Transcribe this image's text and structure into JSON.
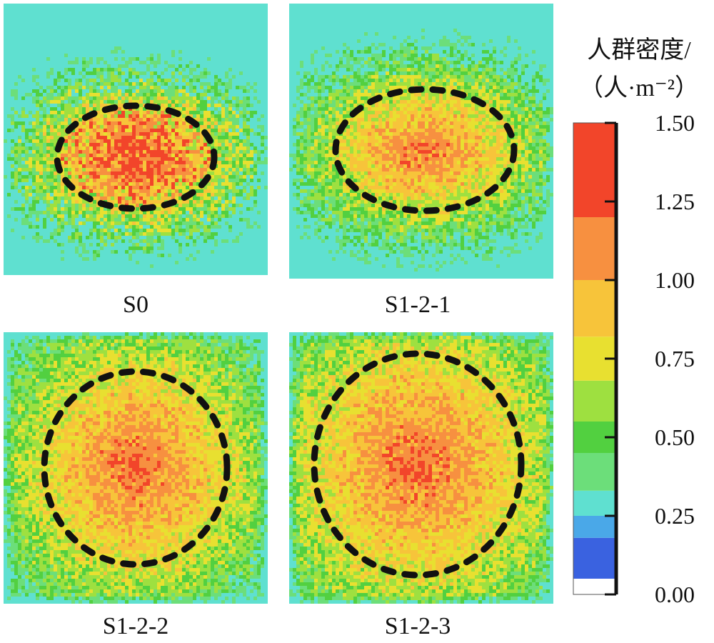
{
  "chart_data": {
    "type": "heatmap",
    "panels": [
      {
        "label": "S0",
        "highlight": "ellipse",
        "pattern": "scattered_red_center"
      },
      {
        "label": "S1-2-1",
        "highlight": "ellipse",
        "pattern": "orange_center"
      },
      {
        "label": "S1-2-2",
        "highlight": "circle",
        "pattern": "orange_center_dense"
      },
      {
        "label": "S1-2-3",
        "highlight": "circle",
        "pattern": "orange_center_dense"
      }
    ],
    "colorbar": {
      "title_line1": "人群密度/",
      "title_line2": "（人·m⁻²）",
      "range": [
        0.0,
        1.5
      ],
      "ticks": [
        1.5,
        1.25,
        1.0,
        0.75,
        0.5,
        0.25,
        0.0
      ],
      "tick_labels": [
        "1.50",
        "1.25",
        "1.00",
        "0.75",
        "0.50",
        "0.25",
        "0.00"
      ],
      "color_stops": [
        {
          "from": 0.0,
          "to": 0.05,
          "color": "#ffffff"
        },
        {
          "from": 0.05,
          "to": 0.18,
          "color": "#3a62e0"
        },
        {
          "from": 0.18,
          "to": 0.25,
          "color": "#4aa8e8"
        },
        {
          "from": 0.25,
          "to": 0.33,
          "color": "#5fe0d0"
        },
        {
          "from": 0.33,
          "to": 0.45,
          "color": "#6cde7a"
        },
        {
          "from": 0.45,
          "to": 0.55,
          "color": "#52d040"
        },
        {
          "from": 0.55,
          "to": 0.68,
          "color": "#9ee040"
        },
        {
          "from": 0.68,
          "to": 0.82,
          "color": "#e8e030"
        },
        {
          "from": 0.82,
          "to": 1.0,
          "color": "#f7c43a"
        },
        {
          "from": 1.0,
          "to": 1.2,
          "color": "#f79040"
        },
        {
          "from": 1.2,
          "to": 1.5,
          "color": "#f2452a"
        }
      ]
    }
  }
}
